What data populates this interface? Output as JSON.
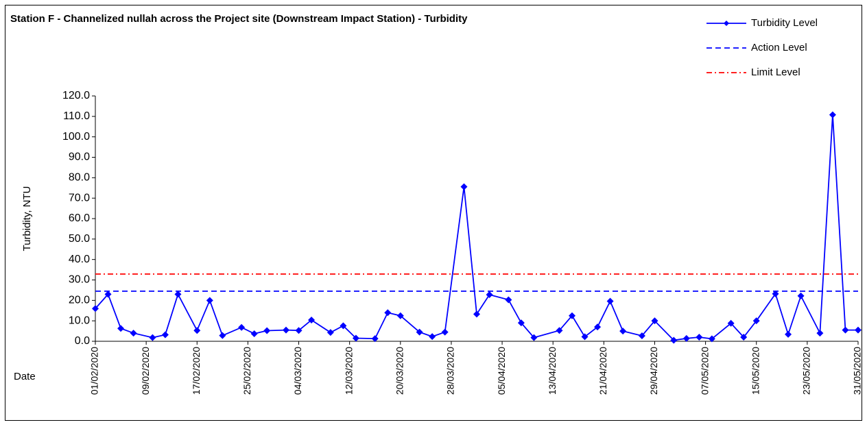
{
  "chart_data": {
    "type": "line",
    "title": "Station F - Channelized nullah across the Project site (Downstream Impact Station) - Turbidity",
    "ylabel": "Turbidity, NTU",
    "xlabel": "Date",
    "xlim": [
      "01/02/2020",
      "31/05/2020"
    ],
    "xticks": [
      "01/02/2020",
      "09/02/2020",
      "17/02/2020",
      "25/02/2020",
      "04/03/2020",
      "12/03/2020",
      "20/03/2020",
      "28/03/2020",
      "05/04/2020",
      "13/04/2020",
      "21/04/2020",
      "29/04/2020",
      "07/05/2020",
      "15/05/2020",
      "23/05/2020",
      "31/05/2020"
    ],
    "ylim": [
      0,
      120
    ],
    "yticks": [
      {
        "value": 0,
        "label": "0.0"
      },
      {
        "value": 10,
        "label": "10.0"
      },
      {
        "value": 20,
        "label": "20.0"
      },
      {
        "value": 30,
        "label": "30.0"
      },
      {
        "value": 40,
        "label": "40.0"
      },
      {
        "value": 50,
        "label": "50.0"
      },
      {
        "value": 60,
        "label": "60.0"
      },
      {
        "value": 70,
        "label": "70.0"
      },
      {
        "value": 80,
        "label": "80.0"
      },
      {
        "value": 90,
        "label": "90.0"
      },
      {
        "value": 100,
        "label": "100.0"
      },
      {
        "value": 110,
        "label": "110.0"
      },
      {
        "value": 120,
        "label": "120.0"
      }
    ],
    "legend": "top-right",
    "series": [
      {
        "name": "Turbidity Level",
        "color": "#0000ff",
        "style": "solid",
        "marker": "diamond",
        "x": [
          "01/02/2020",
          "03/02/2020",
          "05/02/2020",
          "07/02/2020",
          "10/02/2020",
          "12/02/2020",
          "14/02/2020",
          "17/02/2020",
          "19/02/2020",
          "21/02/2020",
          "24/02/2020",
          "26/02/2020",
          "28/02/2020",
          "02/03/2020",
          "04/03/2020",
          "06/03/2020",
          "09/03/2020",
          "11/03/2020",
          "13/03/2020",
          "16/03/2020",
          "18/03/2020",
          "20/03/2020",
          "23/03/2020",
          "25/03/2020",
          "27/03/2020",
          "30/03/2020",
          "01/04/2020",
          "03/04/2020",
          "06/04/2020",
          "08/04/2020",
          "10/04/2020",
          "14/04/2020",
          "16/04/2020",
          "18/04/2020",
          "20/04/2020",
          "22/04/2020",
          "24/04/2020",
          "27/04/2020",
          "29/04/2020",
          "02/05/2020",
          "04/05/2020",
          "06/05/2020",
          "08/05/2020",
          "11/05/2020",
          "13/05/2020",
          "15/05/2020",
          "18/05/2020",
          "20/05/2020",
          "22/05/2020",
          "25/05/2020",
          "27/05/2020",
          "29/05/2020",
          "31/05/2020"
        ],
        "values": [
          16,
          23,
          6.3,
          4,
          1.8,
          3.2,
          23,
          5.3,
          20,
          2.8,
          6.8,
          3.7,
          5.2,
          5.5,
          5.3,
          10.4,
          4.3,
          7.6,
          1.5,
          1.3,
          14,
          12.5,
          4.5,
          2.3,
          4.5,
          75.6,
          13.3,
          22.8,
          20.3,
          9,
          1.8,
          5.3,
          12.5,
          2.2,
          7,
          19.6,
          5,
          2.7,
          10,
          0.5,
          1.4,
          2,
          1.2,
          8.8,
          2,
          10,
          23.2,
          3.4,
          22.2,
          4,
          110.8,
          5.5,
          5.5
        ]
      },
      {
        "name": "Action Level",
        "color": "#0000ff",
        "style": "dashed",
        "x": [
          "01/02/2020",
          "31/05/2020"
        ],
        "values": [
          24.5,
          24.5
        ]
      },
      {
        "name": "Limit Level",
        "color": "#ff0000",
        "style": "dashdot",
        "x": [
          "01/02/2020",
          "31/05/2020"
        ],
        "values": [
          32.9,
          32.9
        ]
      }
    ]
  }
}
